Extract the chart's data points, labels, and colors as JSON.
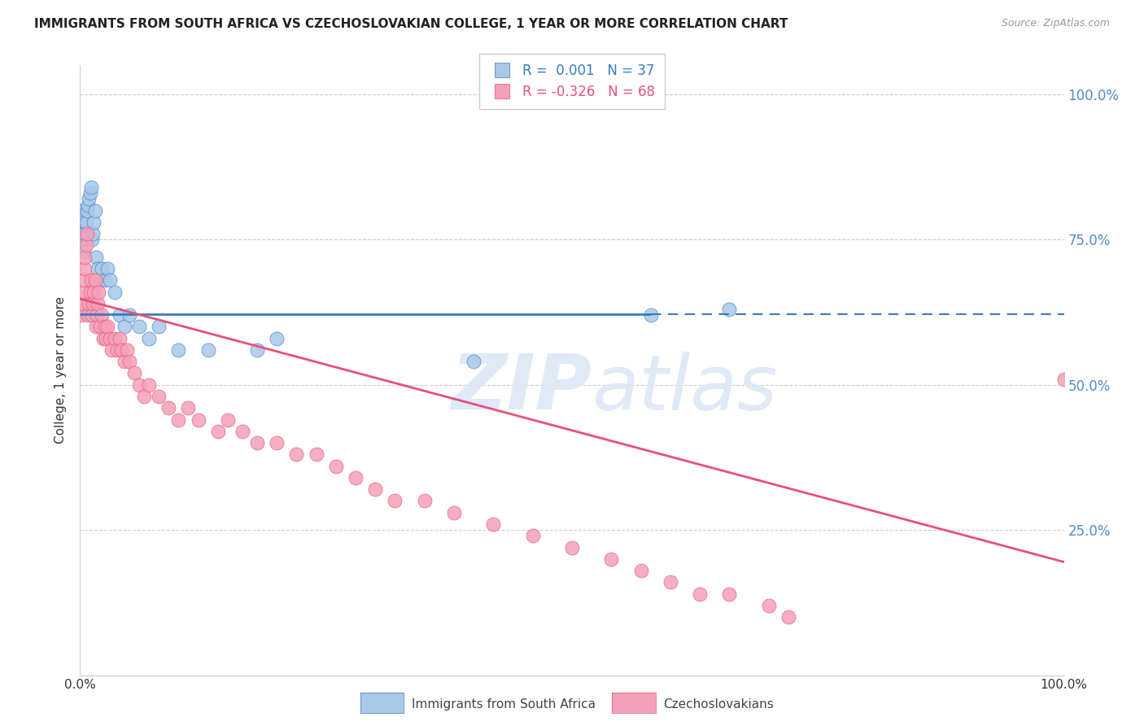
{
  "title": "IMMIGRANTS FROM SOUTH AFRICA VS CZECHOSLOVAKIAN COLLEGE, 1 YEAR OR MORE CORRELATION CHART",
  "source": "Source: ZipAtlas.com",
  "ylabel": "College, 1 year or more",
  "legend_blue_r_val": "0.001",
  "legend_blue_n_val": "37",
  "legend_pink_r_val": "-0.326",
  "legend_pink_n_val": "68",
  "legend_label_blue": "Immigrants from South Africa",
  "legend_label_pink": "Czechoslovakians",
  "watermark": "ZIPAtlas",
  "blue_color": "#a8c8e8",
  "pink_color": "#f4a0b8",
  "blue_line_color": "#3a7abf",
  "pink_line_color": "#e8507a",
  "right_axis_color": "#5588cc",
  "blue_line_solid_end": 0.58,
  "blue_line_y": 0.622,
  "pink_line_y_start": 0.648,
  "pink_line_y_end": 0.195,
  "blue_points_x": [
    0.001,
    0.002,
    0.003,
    0.003,
    0.004,
    0.005,
    0.006,
    0.007,
    0.008,
    0.009,
    0.01,
    0.011,
    0.012,
    0.013,
    0.014,
    0.015,
    0.016,
    0.018,
    0.02,
    0.022,
    0.025,
    0.028,
    0.03,
    0.035,
    0.04,
    0.045,
    0.05,
    0.06,
    0.07,
    0.08,
    0.1,
    0.13,
    0.18,
    0.2,
    0.4,
    0.58,
    0.66
  ],
  "blue_points_y": [
    0.8,
    0.78,
    0.76,
    0.75,
    0.73,
    0.76,
    0.78,
    0.8,
    0.81,
    0.82,
    0.83,
    0.84,
    0.75,
    0.76,
    0.78,
    0.8,
    0.72,
    0.7,
    0.68,
    0.7,
    0.68,
    0.7,
    0.68,
    0.66,
    0.62,
    0.6,
    0.62,
    0.6,
    0.58,
    0.6,
    0.56,
    0.56,
    0.56,
    0.58,
    0.54,
    0.62,
    0.63
  ],
  "pink_points_x": [
    0.001,
    0.002,
    0.003,
    0.004,
    0.005,
    0.005,
    0.006,
    0.007,
    0.008,
    0.009,
    0.01,
    0.011,
    0.012,
    0.013,
    0.014,
    0.015,
    0.016,
    0.017,
    0.018,
    0.019,
    0.02,
    0.022,
    0.024,
    0.025,
    0.026,
    0.028,
    0.03,
    0.032,
    0.035,
    0.038,
    0.04,
    0.042,
    0.045,
    0.048,
    0.05,
    0.055,
    0.06,
    0.065,
    0.07,
    0.08,
    0.09,
    0.1,
    0.11,
    0.12,
    0.14,
    0.15,
    0.165,
    0.18,
    0.2,
    0.22,
    0.24,
    0.26,
    0.28,
    0.3,
    0.32,
    0.35,
    0.38,
    0.42,
    0.46,
    0.5,
    0.54,
    0.57,
    0.6,
    0.63,
    0.66,
    0.7,
    0.72,
    1.0
  ],
  "pink_points_y": [
    0.62,
    0.64,
    0.66,
    0.68,
    0.7,
    0.72,
    0.74,
    0.76,
    0.62,
    0.64,
    0.66,
    0.68,
    0.62,
    0.64,
    0.66,
    0.68,
    0.6,
    0.62,
    0.64,
    0.66,
    0.6,
    0.62,
    0.58,
    0.6,
    0.58,
    0.6,
    0.58,
    0.56,
    0.58,
    0.56,
    0.58,
    0.56,
    0.54,
    0.56,
    0.54,
    0.52,
    0.5,
    0.48,
    0.5,
    0.48,
    0.46,
    0.44,
    0.46,
    0.44,
    0.42,
    0.44,
    0.42,
    0.4,
    0.4,
    0.38,
    0.38,
    0.36,
    0.34,
    0.32,
    0.3,
    0.3,
    0.28,
    0.26,
    0.24,
    0.22,
    0.2,
    0.18,
    0.16,
    0.14,
    0.14,
    0.12,
    0.1,
    0.51
  ],
  "xlim": [
    0.0,
    1.0
  ],
  "ylim": [
    0.0,
    1.05
  ],
  "yticks": [
    0.0,
    0.25,
    0.5,
    0.75,
    1.0
  ],
  "ytick_labels": [
    "",
    "25.0%",
    "50.0%",
    "75.0%",
    "100.0%"
  ],
  "grid_color": "#cccccc",
  "background_color": "#ffffff"
}
